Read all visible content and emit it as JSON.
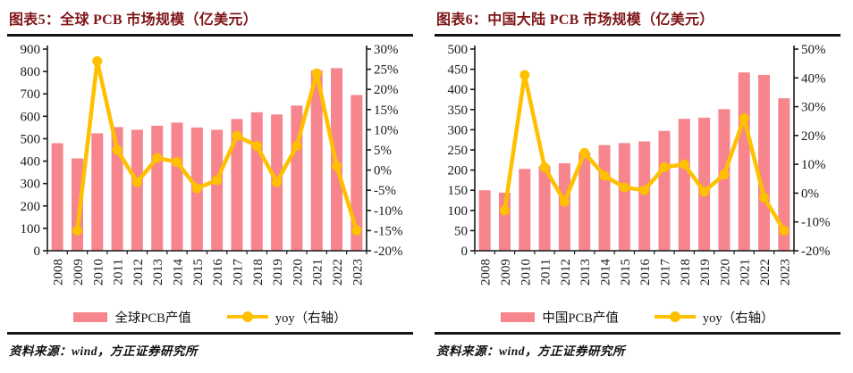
{
  "colors": {
    "bar": "#F6858D",
    "line": "#FFC000",
    "title_text": "#7E1517",
    "axis": "#1A1A1A",
    "rule": "#151515"
  },
  "chart_data": [
    {
      "type": "bar+line",
      "title": "图表5：全球 PCB 市场规模（亿美元）",
      "source": "资料来源：wind，方正证券研究所",
      "categories": [
        "2008",
        "2009",
        "2010",
        "2011",
        "2012",
        "2013",
        "2014",
        "2015",
        "2016",
        "2017",
        "2018",
        "2019",
        "2020",
        "2021",
        "2022",
        "2023"
      ],
      "series": [
        {
          "name": "全球PCB产值",
          "type": "bar",
          "axis": "left",
          "values": [
            480,
            412,
            524,
            552,
            540,
            558,
            572,
            550,
            540,
            588,
            618,
            608,
            648,
            805,
            815,
            695
          ]
        },
        {
          "name": "yoy（右轴）",
          "type": "line",
          "axis": "right",
          "values": [
            null,
            -15,
            27,
            5,
            -3,
            3,
            2,
            -4.5,
            -2.5,
            8.5,
            6,
            -3,
            6,
            24,
            1,
            -15
          ]
        }
      ],
      "left_axis": {
        "min": 0,
        "max": 900,
        "step": 100,
        "suffix": ""
      },
      "right_axis": {
        "min": -20,
        "max": 30,
        "step": 5,
        "suffix": "%"
      },
      "grid": false,
      "legend_position": "bottom"
    },
    {
      "type": "bar+line",
      "title": "图表6：中国大陆 PCB 市场规模（亿美元）",
      "source": "资料来源：wind，方正证券研究所",
      "categories": [
        "2008",
        "2009",
        "2010",
        "2011",
        "2012",
        "2013",
        "2014",
        "2015",
        "2016",
        "2017",
        "2018",
        "2019",
        "2020",
        "2021",
        "2022",
        "2023"
      ],
      "series": [
        {
          "name": "中国PCB产值",
          "type": "bar",
          "axis": "left",
          "values": [
            150,
            144,
            203,
            210,
            217,
            243,
            262,
            267,
            271,
            297,
            327,
            330,
            351,
            442,
            436,
            378
          ]
        },
        {
          "name": "yoy（右轴）",
          "type": "line",
          "axis": "right",
          "values": [
            null,
            -6,
            41,
            9,
            -3,
            14,
            6,
            2,
            1,
            9,
            10,
            0.5,
            6.5,
            26,
            -1.5,
            -13
          ]
        }
      ],
      "left_axis": {
        "min": 0,
        "max": 500,
        "step": 50,
        "suffix": ""
      },
      "right_axis": {
        "min": -20,
        "max": 50,
        "step": 10,
        "suffix": "%"
      },
      "grid": false,
      "legend_position": "bottom"
    }
  ]
}
